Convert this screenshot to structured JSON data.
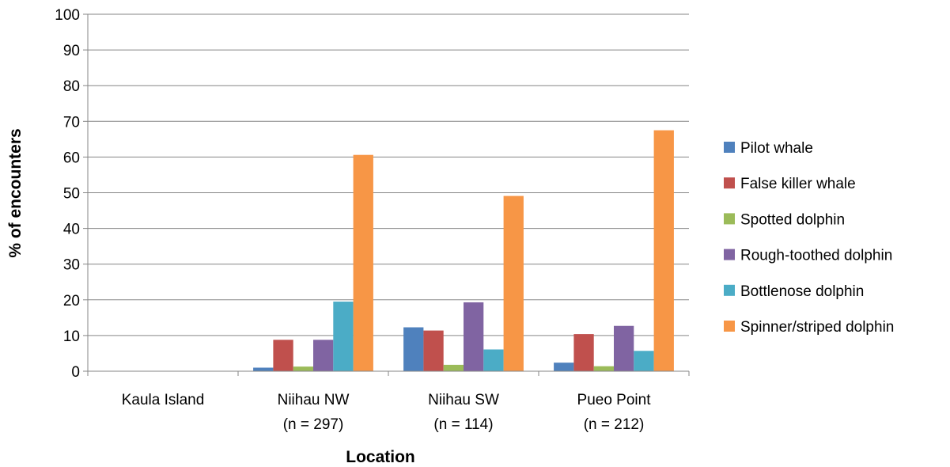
{
  "chart_data": {
    "type": "bar",
    "title": "",
    "xlabel": "Location",
    "ylabel": "% of encounters",
    "ylim": [
      0,
      100
    ],
    "ytick_step": 10,
    "grid": true,
    "legend_position": "right",
    "categories": [
      {
        "line1": "Kaula Island",
        "line2": ""
      },
      {
        "line1": "Niihau NW",
        "line2": "(n = 297)"
      },
      {
        "line1": "Niihau SW",
        "line2": "(n = 114)"
      },
      {
        "line1": "Pueo Point",
        "line2": "(n = 212)"
      }
    ],
    "series": [
      {
        "name": "Pilot whale",
        "color": "#4F81BD",
        "values": [
          0,
          1.0,
          12.3,
          2.4
        ]
      },
      {
        "name": "False killer whale",
        "color": "#C0504D",
        "values": [
          0,
          8.8,
          11.4,
          10.4
        ]
      },
      {
        "name": "Spotted dolphin",
        "color": "#9BBB59",
        "values": [
          0,
          1.3,
          1.8,
          1.4
        ]
      },
      {
        "name": "Rough-toothed dolphin",
        "color": "#8064A2",
        "values": [
          0,
          8.8,
          19.3,
          12.7
        ]
      },
      {
        "name": "Bottlenose dolphin",
        "color": "#4BACC6",
        "values": [
          0,
          19.5,
          6.1,
          5.7
        ]
      },
      {
        "name": "Spinner/striped dolphin",
        "color": "#F79646",
        "values": [
          0,
          60.6,
          49.1,
          67.5
        ]
      }
    ]
  }
}
